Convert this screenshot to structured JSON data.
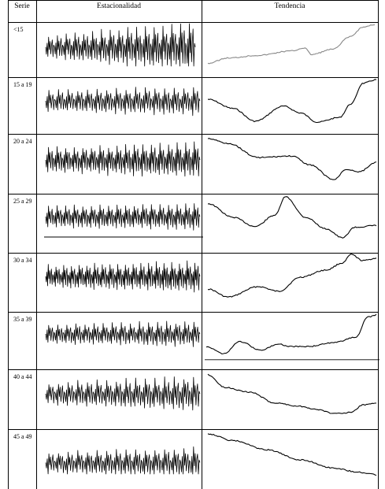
{
  "table": {
    "headers": {
      "serie": "Serie",
      "estacionalidad": "Estacionalidad",
      "tendencia": "Tendencia"
    },
    "rows": [
      {
        "serie": "<15",
        "trend_color": "#888888"
      },
      {
        "serie": "15 a 19",
        "trend_color": "#000000"
      },
      {
        "serie": "20 a 24",
        "trend_color": "#000000"
      },
      {
        "serie": "25 a 29",
        "trend_color": "#000000"
      },
      {
        "serie": "30 a 34",
        "trend_color": "#000000"
      },
      {
        "serie": "35 a 39",
        "trend_color": "#000000"
      },
      {
        "serie": "40 a 44",
        "trend_color": "#000000"
      },
      {
        "serie": "45 a 49",
        "trend_color": "#000000"
      }
    ]
  }
}
